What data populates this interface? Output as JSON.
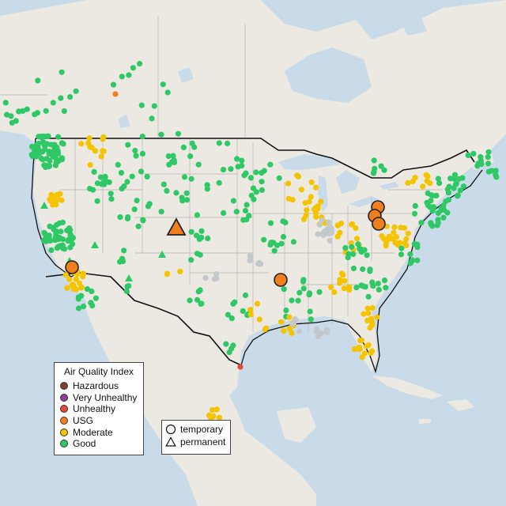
{
  "legend": {
    "title": "Air Quality Index",
    "categories": [
      {
        "label": "Hazardous",
        "color": "#7e3f2c"
      },
      {
        "label": "Very Unhealthy",
        "color": "#8f3f97"
      },
      {
        "label": "Unhealthy",
        "color": "#e8443a"
      },
      {
        "label": "USG",
        "color": "#f07f20"
      },
      {
        "label": "Moderate",
        "color": "#f5c400"
      },
      {
        "label": "Good",
        "color": "#2ec866"
      }
    ],
    "types": [
      {
        "label": "temporary",
        "shape": "circle"
      },
      {
        "label": "permanent",
        "shape": "triangle"
      }
    ]
  },
  "colors": {
    "ocean": "#c9dbe9",
    "land": "#ede9e4",
    "border": "#111111",
    "no_data": "#c4c8cc"
  }
}
